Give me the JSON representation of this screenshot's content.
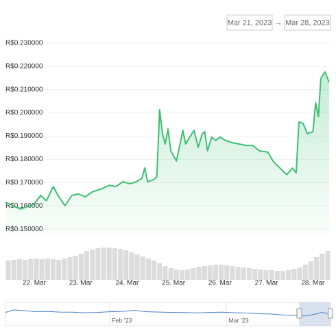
{
  "range": {
    "from": "Mar 21, 2023",
    "separator": "→",
    "to": "Mar 28, 2023"
  },
  "chart_data": {
    "type": "line",
    "x": [
      21.38,
      21.7,
      21.99,
      22.14,
      22.26,
      22.41,
      22.51,
      22.66,
      22.81,
      22.95,
      23.1,
      23.25,
      23.47,
      23.62,
      23.76,
      23.91,
      24.06,
      24.2,
      24.32,
      24.38,
      24.44,
      24.57,
      24.64,
      24.7,
      24.76,
      24.82,
      24.88,
      24.94,
      25.06,
      25.14,
      25.2,
      25.26,
      25.35,
      25.44,
      25.53,
      25.62,
      25.67,
      25.73,
      25.82,
      25.91,
      26.0,
      26.12,
      26.26,
      26.41,
      26.56,
      26.7,
      26.85,
      27.03,
      27.14,
      27.29,
      27.44,
      27.56,
      27.64,
      27.7,
      27.79,
      27.88,
      28.0,
      28.06,
      28.12,
      28.17,
      28.26,
      28.35
    ],
    "series": [
      {
        "color": "#3dbf73",
        "values": [
          0.1616,
          0.1586,
          0.1607,
          0.1645,
          0.1622,
          0.1683,
          0.1645,
          0.1601,
          0.1645,
          0.1651,
          0.1639,
          0.166,
          0.1675,
          0.1689,
          0.1683,
          0.1704,
          0.1695,
          0.1704,
          0.1719,
          0.1763,
          0.1704,
          0.1713,
          0.1725,
          0.2014,
          0.1911,
          0.1866,
          0.1931,
          0.1837,
          0.1793,
          0.1866,
          0.1925,
          0.1866,
          0.1896,
          0.1925,
          0.1852,
          0.1911,
          0.1919,
          0.1837,
          0.1896,
          0.1881,
          0.1896,
          0.1881,
          0.1872,
          0.1866,
          0.186,
          0.186,
          0.1837,
          0.1831,
          0.1793,
          0.1763,
          0.1734,
          0.1763,
          0.1742,
          0.1961,
          0.1955,
          0.1911,
          0.1919,
          0.2043,
          0.1984,
          0.2147,
          0.2176,
          0.2132
        ]
      }
    ],
    "xlim": [
      21.38,
      28.38
    ],
    "xticks": [
      {
        "value": 22,
        "label": "22. Mar"
      },
      {
        "value": 23,
        "label": "23. Mar"
      },
      {
        "value": 24,
        "label": "24. Mar"
      },
      {
        "value": 25,
        "label": "25. Mar"
      },
      {
        "value": 26,
        "label": "26. Mar"
      },
      {
        "value": 27,
        "label": "27. Mar"
      },
      {
        "value": 28,
        "label": "28. Mar"
      }
    ],
    "ylim": [
      0.1468,
      0.2338
    ],
    "yticks": [
      {
        "value": 0.23,
        "label": "R$0.230000"
      },
      {
        "value": 0.22,
        "label": "R$0.220000"
      },
      {
        "value": 0.21,
        "label": "R$0.210000"
      },
      {
        "value": 0.2,
        "label": "R$0.200000"
      },
      {
        "value": 0.19,
        "label": "R$0.190000"
      },
      {
        "value": 0.18,
        "label": "R$0.180000"
      },
      {
        "value": 0.17,
        "label": "R$0.170000"
      },
      {
        "value": 0.16,
        "label": "R$0.160000"
      },
      {
        "value": 0.15,
        "label": "R$0.150000"
      }
    ],
    "grid": true,
    "volume": {
      "color": "#dcdcdc",
      "ylim": [
        0,
        50
      ],
      "values": [
        28,
        29,
        30,
        29,
        30,
        31,
        30,
        31,
        30,
        29,
        31,
        33,
        35,
        38,
        42,
        44,
        46,
        47,
        47,
        46,
        45,
        43,
        40,
        37,
        34,
        31,
        28,
        24,
        20,
        17,
        15,
        14,
        15,
        17,
        19,
        20,
        21,
        22,
        22,
        21,
        20,
        19,
        18,
        17,
        16,
        15,
        14,
        14,
        13,
        13,
        14,
        16,
        18,
        22,
        27,
        33,
        38,
        42
      ]
    },
    "navigator": {
      "color": "#4a7fc1",
      "xlim": [
        6,
        84
      ],
      "ylim": [
        0.12,
        0.26
      ],
      "x": [
        6,
        8,
        10,
        13,
        16,
        19,
        22,
        25,
        28,
        31,
        34,
        37,
        40,
        43,
        46,
        49,
        52,
        55,
        58,
        61,
        64,
        67,
        70,
        73,
        76,
        78,
        80,
        82,
        84
      ],
      "values": [
        0.2,
        0.215,
        0.212,
        0.205,
        0.206,
        0.202,
        0.201,
        0.198,
        0.2,
        0.204,
        0.206,
        0.212,
        0.204,
        0.202,
        0.2,
        0.199,
        0.197,
        0.2,
        0.201,
        0.198,
        0.196,
        0.192,
        0.19,
        0.184,
        0.182,
        0.178,
        0.188,
        0.2,
        0.19
      ],
      "xticks": [
        {
          "value": 31,
          "label": "Feb '23"
        },
        {
          "value": 59,
          "label": "Mar '23"
        }
      ],
      "selection": [
        76.5,
        84
      ]
    }
  }
}
